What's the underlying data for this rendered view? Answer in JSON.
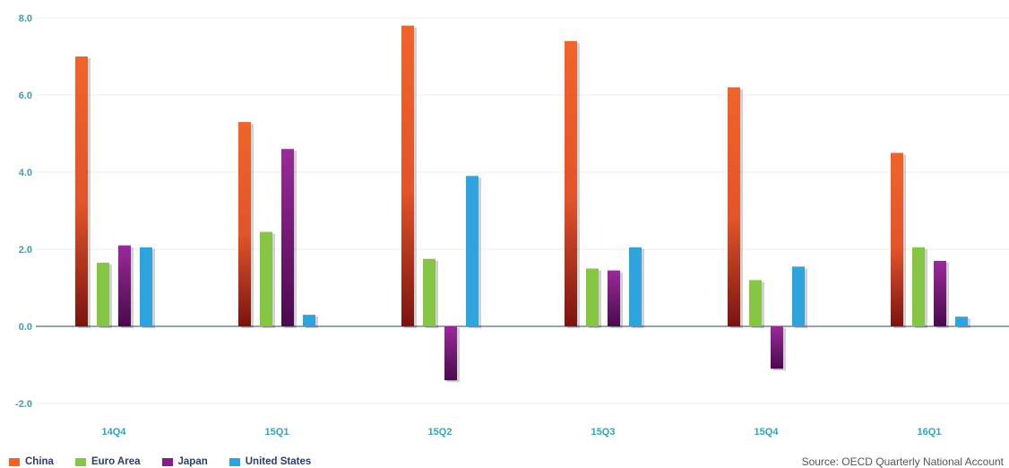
{
  "chart_data": {
    "type": "bar",
    "title": "",
    "xlabel": "",
    "ylabel": "",
    "categories": [
      "14Q4",
      "15Q1",
      "15Q2",
      "15Q3",
      "15Q4",
      "16Q1"
    ],
    "series": [
      {
        "name": "China",
        "color": "#f0642a",
        "values": [
          7.0,
          5.3,
          7.8,
          7.4,
          6.2,
          4.5
        ]
      },
      {
        "name": "Euro Area",
        "color": "#86c644",
        "values": [
          1.65,
          2.45,
          1.75,
          1.5,
          1.2,
          2.05
        ]
      },
      {
        "name": "Japan",
        "color": "#8a1a8c",
        "values": [
          2.1,
          4.6,
          -1.4,
          1.45,
          -1.1,
          1.7
        ]
      },
      {
        "name": "United States",
        "color": "#2ea4df",
        "values": [
          2.05,
          0.3,
          3.9,
          2.05,
          1.55,
          0.25
        ]
      }
    ],
    "ylim": [
      -2.0,
      8.0
    ],
    "yticks": [
      "8.0",
      "6.0",
      "4.0",
      "2.0",
      "0.0",
      "-2.0"
    ],
    "ytick_values": [
      8,
      6,
      4,
      2,
      0,
      -2
    ],
    "grid": true,
    "legend_position": "bottom-left",
    "source": "Source: OECD Quarterly National Account"
  }
}
